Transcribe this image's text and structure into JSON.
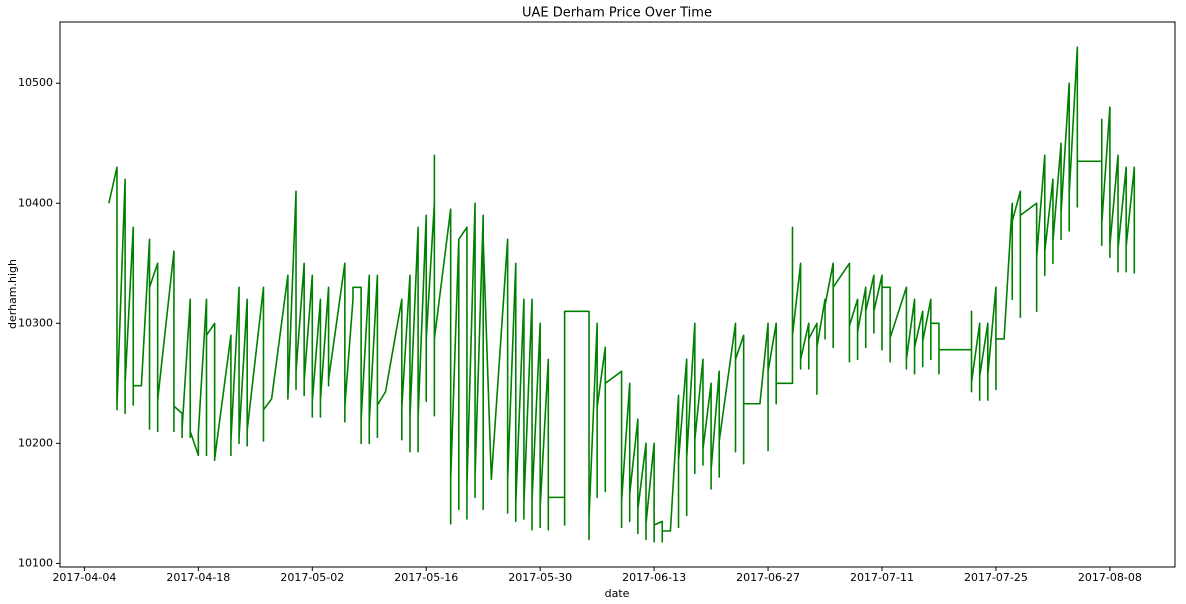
{
  "chart_data": {
    "type": "line",
    "title": "UAE Derham Price Over Time",
    "x_label": "date",
    "y_label": "derham.high",
    "color": "#008000",
    "xlim": [
      "2017-04-01",
      "2017-08-16"
    ],
    "xticks": [
      "2017-04-04",
      "2017-04-18",
      "2017-05-02",
      "2017-05-16",
      "2017-05-30",
      "2017-06-13",
      "2017-06-27",
      "2017-07-11",
      "2017-07-25",
      "2017-08-08"
    ],
    "ylim": [
      10097,
      10551
    ],
    "yticks": [
      10100,
      10200,
      10300,
      10400,
      10500
    ],
    "x": [
      "2017-04-07",
      "2017-04-07",
      "2017-04-08",
      "2017-04-08",
      "2017-04-08",
      "2017-04-09",
      "2017-04-09",
      "2017-04-09",
      "2017-04-10",
      "2017-04-10",
      "2017-04-10",
      "2017-04-11",
      "2017-04-12",
      "2017-04-12",
      "2017-04-12",
      "2017-04-13",
      "2017-04-13",
      "2017-04-13",
      "2017-04-15",
      "2017-04-15",
      "2017-04-15",
      "2017-04-16",
      "2017-04-16",
      "2017-04-16",
      "2017-04-17",
      "2017-04-17",
      "2017-04-17",
      "2017-04-18",
      "2017-04-18",
      "2017-04-19",
      "2017-04-19",
      "2017-04-19",
      "2017-04-20",
      "2017-04-20",
      "2017-04-20",
      "2017-04-22",
      "2017-04-22",
      "2017-04-22",
      "2017-04-23",
      "2017-04-23",
      "2017-04-23",
      "2017-04-24",
      "2017-04-24",
      "2017-04-24",
      "2017-04-26",
      "2017-04-26",
      "2017-04-26",
      "2017-04-27",
      "2017-04-29",
      "2017-04-29",
      "2017-04-30",
      "2017-04-30",
      "2017-04-30",
      "2017-05-01",
      "2017-05-01",
      "2017-05-01",
      "2017-05-02",
      "2017-05-02",
      "2017-05-02",
      "2017-05-03",
      "2017-05-03",
      "2017-05-03",
      "2017-05-04",
      "2017-05-04",
      "2017-05-04",
      "2017-05-06",
      "2017-05-06",
      "2017-05-06",
      "2017-05-07",
      "2017-05-07",
      "2017-05-08",
      "2017-05-08",
      "2017-05-08",
      "2017-05-09",
      "2017-05-09",
      "2017-05-09",
      "2017-05-10",
      "2017-05-10",
      "2017-05-10",
      "2017-05-11",
      "2017-05-13",
      "2017-05-13",
      "2017-05-13",
      "2017-05-14",
      "2017-05-14",
      "2017-05-14",
      "2017-05-15",
      "2017-05-15",
      "2017-05-15",
      "2017-05-16",
      "2017-05-16",
      "2017-05-16",
      "2017-05-17",
      "2017-05-17",
      "2017-05-17",
      "2017-05-17",
      "2017-05-19",
      "2017-05-19",
      "2017-05-19",
      "2017-05-20",
      "2017-05-20",
      "2017-05-20",
      "2017-05-21",
      "2017-05-21",
      "2017-05-21",
      "2017-05-22",
      "2017-05-22",
      "2017-05-22",
      "2017-05-23",
      "2017-05-23",
      "2017-05-23",
      "2017-05-24",
      "2017-05-26",
      "2017-05-26",
      "2017-05-26",
      "2017-05-27",
      "2017-05-27",
      "2017-05-27",
      "2017-05-28",
      "2017-05-28",
      "2017-05-28",
      "2017-05-29",
      "2017-05-29",
      "2017-05-29",
      "2017-05-30",
      "2017-05-30",
      "2017-05-30",
      "2017-05-31",
      "2017-05-31",
      "2017-05-31",
      "2017-06-02",
      "2017-06-02",
      "2017-06-02",
      "2017-06-05",
      "2017-06-05",
      "2017-06-05",
      "2017-06-05",
      "2017-06-06",
      "2017-06-06",
      "2017-06-06",
      "2017-06-07",
      "2017-06-07",
      "2017-06-07",
      "2017-06-09",
      "2017-06-09",
      "2017-06-09",
      "2017-06-10",
      "2017-06-10",
      "2017-06-10",
      "2017-06-11",
      "2017-06-11",
      "2017-06-11",
      "2017-06-12",
      "2017-06-12",
      "2017-06-12",
      "2017-06-13",
      "2017-06-13",
      "2017-06-13",
      "2017-06-14",
      "2017-06-14",
      "2017-06-14",
      "2017-06-15",
      "2017-06-16",
      "2017-06-16",
      "2017-06-16",
      "2017-06-17",
      "2017-06-17",
      "2017-06-17",
      "2017-06-18",
      "2017-06-18",
      "2017-06-18",
      "2017-06-19",
      "2017-06-19",
      "2017-06-19",
      "2017-06-20",
      "2017-06-20",
      "2017-06-20",
      "2017-06-21",
      "2017-06-21",
      "2017-06-21",
      "2017-06-23",
      "2017-06-23",
      "2017-06-23",
      "2017-06-24",
      "2017-06-24",
      "2017-06-24",
      "2017-06-26",
      "2017-06-27",
      "2017-06-27",
      "2017-06-27",
      "2017-06-28",
      "2017-06-28",
      "2017-06-28",
      "2017-06-30",
      "2017-06-30",
      "2017-06-30",
      "2017-07-01",
      "2017-07-01",
      "2017-07-01",
      "2017-07-02",
      "2017-07-02",
      "2017-07-02",
      "2017-07-03",
      "2017-07-03",
      "2017-07-03",
      "2017-07-04",
      "2017-07-04",
      "2017-07-04",
      "2017-07-05",
      "2017-07-05",
      "2017-07-05",
      "2017-07-07",
      "2017-07-07",
      "2017-07-07",
      "2017-07-08",
      "2017-07-08",
      "2017-07-08",
      "2017-07-09",
      "2017-07-09",
      "2017-07-09",
      "2017-07-10",
      "2017-07-10",
      "2017-07-10",
      "2017-07-11",
      "2017-07-11",
      "2017-07-11",
      "2017-07-12",
      "2017-07-12",
      "2017-07-12",
      "2017-07-14",
      "2017-07-14",
      "2017-07-14",
      "2017-07-15",
      "2017-07-15",
      "2017-07-15",
      "2017-07-16",
      "2017-07-16",
      "2017-07-16",
      "2017-07-17",
      "2017-07-17",
      "2017-07-17",
      "2017-07-18",
      "2017-07-18",
      "2017-07-18",
      "2017-07-22",
      "2017-07-22",
      "2017-07-22",
      "2017-07-22",
      "2017-07-23",
      "2017-07-23",
      "2017-07-23",
      "2017-07-24",
      "2017-07-24",
      "2017-07-24",
      "2017-07-25",
      "2017-07-25",
      "2017-07-25",
      "2017-07-26",
      "2017-07-27",
      "2017-07-27",
      "2017-07-27",
      "2017-07-28",
      "2017-07-28",
      "2017-07-28",
      "2017-07-30",
      "2017-07-30",
      "2017-07-30",
      "2017-07-31",
      "2017-07-31",
      "2017-07-31",
      "2017-08-01",
      "2017-08-01",
      "2017-08-01",
      "2017-08-02",
      "2017-08-02",
      "2017-08-02",
      "2017-08-03",
      "2017-08-03",
      "2017-08-03",
      "2017-08-04",
      "2017-08-04",
      "2017-08-04",
      "2017-08-07",
      "2017-08-07",
      "2017-08-07",
      "2017-08-07",
      "2017-08-08",
      "2017-08-08",
      "2017-08-08",
      "2017-08-09",
      "2017-08-09",
      "2017-08-09",
      "2017-08-10",
      "2017-08-10",
      "2017-08-10",
      "2017-08-11",
      "2017-08-11",
      "2017-08-11"
    ],
    "values": [
      10400,
      10400,
      10430,
      10228,
      10232,
      10420,
      10225,
      10250,
      10380,
      10232,
      10248,
      10248,
      10370,
      10212,
      10330,
      10350,
      10210,
      10236,
      10360,
      10210,
      10231,
      10225,
      10205,
      10212,
      10320,
      10205,
      10210,
      10190,
      10209,
      10320,
      10190,
      10290,
      10300,
      10186,
      10187,
      10290,
      10190,
      10202,
      10330,
      10200,
      10205,
      10320,
      10198,
      10211,
      10330,
      10202,
      10228,
      10237,
      10340,
      10237,
      10410,
      10245,
      10260,
      10350,
      10240,
      10252,
      10340,
      10222,
      10235,
      10320,
      10222,
      10236,
      10330,
      10248,
      10253,
      10350,
      10218,
      10231,
      10320,
      10330,
      10330,
      10200,
      10220,
      10340,
      10200,
      10218,
      10340,
      10205,
      10232,
      10243,
      10320,
      10203,
      10230,
      10340,
      10193,
      10222,
      10380,
      10193,
      10222,
      10390,
      10235,
      10287,
      10400,
      10440,
      10223,
      10287,
      10395,
      10133,
      10170,
      10370,
      10145,
      10370,
      10380,
      10137,
      10165,
      10400,
      10155,
      10173,
      10390,
      10145,
      10370,
      10170,
      10370,
      10142,
      10170,
      10350,
      10135,
      10150,
      10320,
      10137,
      10150,
      10320,
      10128,
      10153,
      10300,
      10130,
      10147,
      10270,
      10128,
      10155,
      10155,
      10132,
      10310,
      10310,
      10120,
      10270,
      10138,
      10300,
      10155,
      10230,
      10280,
      10160,
      10250,
      10260,
      10130,
      10152,
      10250,
      10135,
      10158,
      10220,
      10125,
      10145,
      10200,
      10120,
      10133,
      10200,
      10118,
      10132,
      10135,
      10118,
      10127,
      10127,
      10240,
      10130,
      10186,
      10270,
      10140,
      10188,
      10300,
      10175,
      10203,
      10270,
      10182,
      10195,
      10250,
      10162,
      10178,
      10260,
      10172,
      10202,
      10300,
      10193,
      10270,
      10290,
      10183,
      10233,
      10233,
      10300,
      10194,
      10260,
      10300,
      10233,
      10250,
      10250,
      10380,
      10290,
      10350,
      10262,
      10270,
      10300,
      10262,
      10287,
      10300,
      10241,
      10280,
      10320,
      10287,
      10315,
      10350,
      10280,
      10330,
      10350,
      10268,
      10298,
      10320,
      10270,
      10293,
      10330,
      10280,
      10310,
      10340,
      10292,
      10310,
      10340,
      10278,
      10330,
      10330,
      10268,
      10288,
      10330,
      10262,
      10270,
      10320,
      10258,
      10280,
      10310,
      10264,
      10285,
      10320,
      10270,
      10300,
      10300,
      10258,
      10278,
      10278,
      10310,
      10243,
      10251,
      10300,
      10236,
      10256,
      10300,
      10236,
      10257,
      10330,
      10245,
      10287,
      10287,
      10400,
      10320,
      10385,
      10410,
      10305,
      10390,
      10400,
      10310,
      10355,
      10440,
      10340,
      10360,
      10420,
      10350,
      10368,
      10450,
      10370,
      10392,
      10500,
      10377,
      10408,
      10530,
      10397,
      10435,
      10435,
      10470,
      10365,
      10383,
      10480,
      10355,
      10365,
      10440,
      10343,
      10362,
      10430,
      10343,
      10364,
      10430,
      10342,
      10364
    ]
  }
}
